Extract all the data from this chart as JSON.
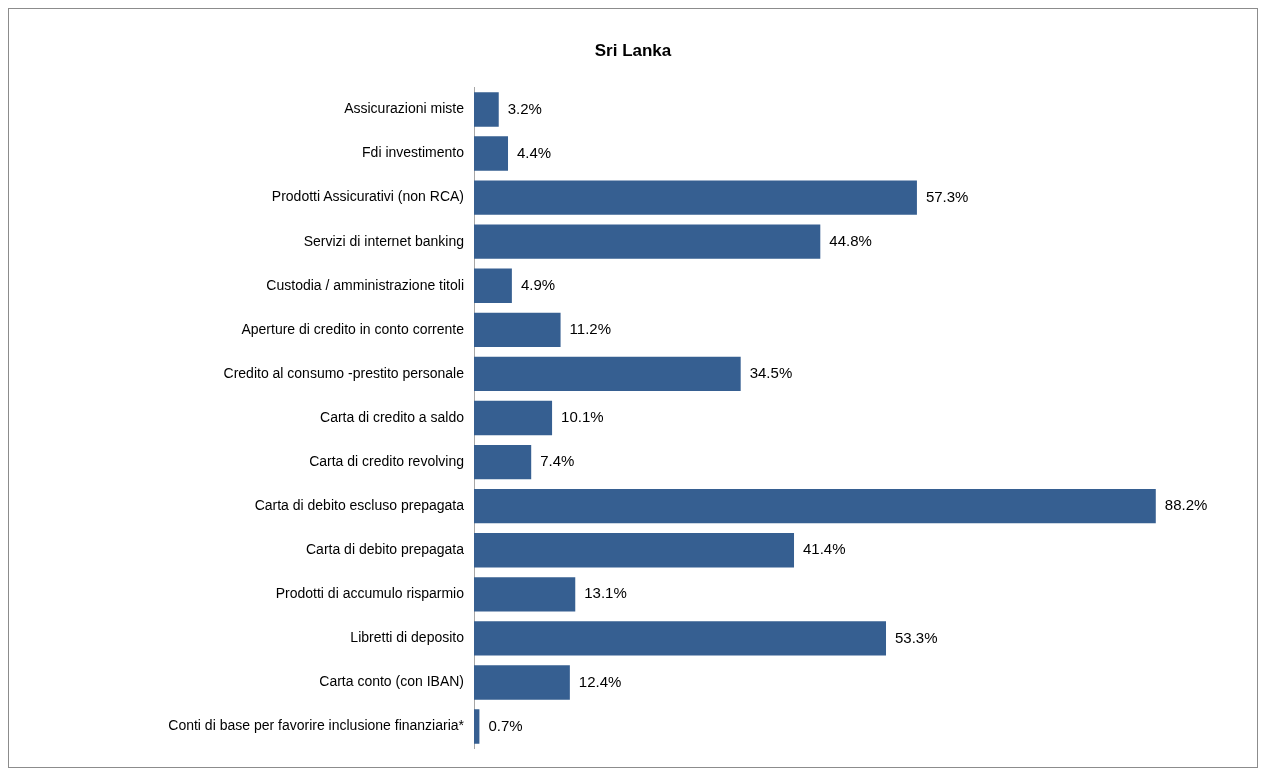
{
  "chart_data": {
    "type": "bar",
    "orientation": "horizontal",
    "title": "Sri Lanka",
    "categories": [
      "Assicurazioni miste",
      "Fdi investimento",
      "Prodotti Assicurativi (non RCA)",
      "Servizi di internet banking",
      "Custodia / amministrazione titoli",
      "Aperture di credito in conto corrente",
      "Credito al consumo -prestito personale",
      "Carta di credito a saldo",
      "Carta di credito revolving",
      "Carta di debito escluso prepagata",
      "Carta di debito prepagata",
      "Prodotti di accumulo risparmio",
      "Libretti di deposito",
      "Carta conto (con IBAN)",
      "Conti di base per favorire inclusione finanziaria*"
    ],
    "values": [
      3.2,
      4.4,
      57.3,
      44.8,
      4.9,
      11.2,
      34.5,
      10.1,
      7.4,
      88.2,
      41.4,
      13.1,
      53.3,
      12.4,
      0.7
    ],
    "value_labels": [
      "3.2%",
      "4.4%",
      "57.3%",
      "44.8%",
      "4.9%",
      "11.2%",
      "34.5%",
      "10.1%",
      "7.4%",
      "88.2%",
      "41.4%",
      "13.1%",
      "53.3%",
      "12.4%",
      "0.7%"
    ],
    "color": "#365f91",
    "legend": false
  }
}
